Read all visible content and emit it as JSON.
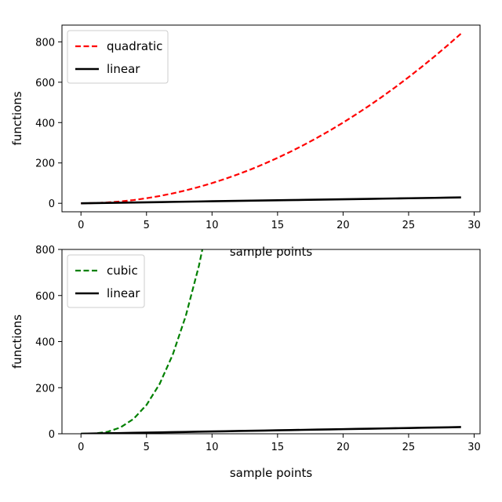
{
  "chart_data": [
    {
      "type": "line",
      "title": "",
      "xlabel": "sample points",
      "ylabel": "functions",
      "xlim": [
        -1.45,
        30.45
      ],
      "ylim": [
        -42.05,
        883.05
      ],
      "xticks": [
        0,
        5,
        10,
        15,
        20,
        25,
        30
      ],
      "yticks": [
        0,
        200,
        400,
        600,
        800
      ],
      "grid": false,
      "legend_placement": "top-left",
      "series": [
        {
          "name": "quadratic",
          "function": "x^2",
          "x_range": [
            0,
            29
          ],
          "style": "dashed",
          "color": "#ff0000"
        },
        {
          "name": "linear",
          "function": "x",
          "x_range": [
            0,
            29
          ],
          "style": "solid",
          "color": "#000000"
        }
      ]
    },
    {
      "type": "line",
      "title": "",
      "xlabel": "sample points",
      "ylabel": "functions",
      "xlim": [
        -1.45,
        30.45
      ],
      "ylim": [
        0,
        800
      ],
      "xticks": [
        0,
        5,
        10,
        15,
        20,
        25,
        30
      ],
      "yticks": [
        0,
        200,
        400,
        600,
        800
      ],
      "grid": false,
      "legend_placement": "top-left",
      "series": [
        {
          "name": "cubic",
          "function": "x^3",
          "x_range": [
            0,
            29
          ],
          "style": "dashed",
          "color": "#008000"
        },
        {
          "name": "linear",
          "function": "x",
          "x_range": [
            0,
            29
          ],
          "style": "solid",
          "color": "#000000"
        }
      ]
    }
  ]
}
